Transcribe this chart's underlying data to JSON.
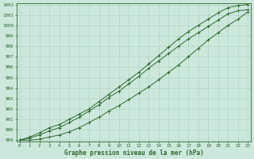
{
  "title": "Graphe pression niveau de la mer (hPa)",
  "xlabel_hours": [
    0,
    1,
    2,
    3,
    4,
    5,
    6,
    7,
    8,
    9,
    10,
    11,
    12,
    13,
    14,
    15,
    16,
    17,
    18,
    19,
    20,
    21,
    22,
    23
  ],
  "ylim": [
    989,
    1002
  ],
  "yticks": [
    989,
    990,
    991,
    992,
    993,
    994,
    995,
    996,
    997,
    998,
    999,
    1000,
    1001,
    1002
  ],
  "line_color": "#2d6a2d",
  "bg_color": "#cce8dc",
  "grid_color": "#aacfbf",
  "series": {
    "high": [
      989.0,
      989.3,
      989.7,
      990.2,
      990.5,
      991.0,
      991.5,
      992.0,
      992.7,
      993.4,
      994.1,
      994.8,
      995.5,
      996.3,
      997.1,
      997.9,
      998.7,
      999.4,
      1000.0,
      1000.6,
      1001.2,
      1001.7,
      1001.9,
      1002.0
    ],
    "mid": [
      989.0,
      989.2,
      989.5,
      989.9,
      990.2,
      990.7,
      991.2,
      991.8,
      992.4,
      993.1,
      993.7,
      994.4,
      995.1,
      995.9,
      996.6,
      997.3,
      998.0,
      998.7,
      999.3,
      999.9,
      1000.5,
      1001.1,
      1001.4,
      1001.5
    ],
    "low": [
      989.0,
      989.0,
      989.1,
      989.3,
      989.5,
      989.8,
      990.2,
      990.7,
      991.2,
      991.8,
      992.3,
      992.9,
      993.5,
      994.1,
      994.8,
      995.5,
      996.2,
      997.0,
      997.8,
      998.6,
      999.3,
      1000.0,
      1000.6,
      1001.3
    ]
  }
}
